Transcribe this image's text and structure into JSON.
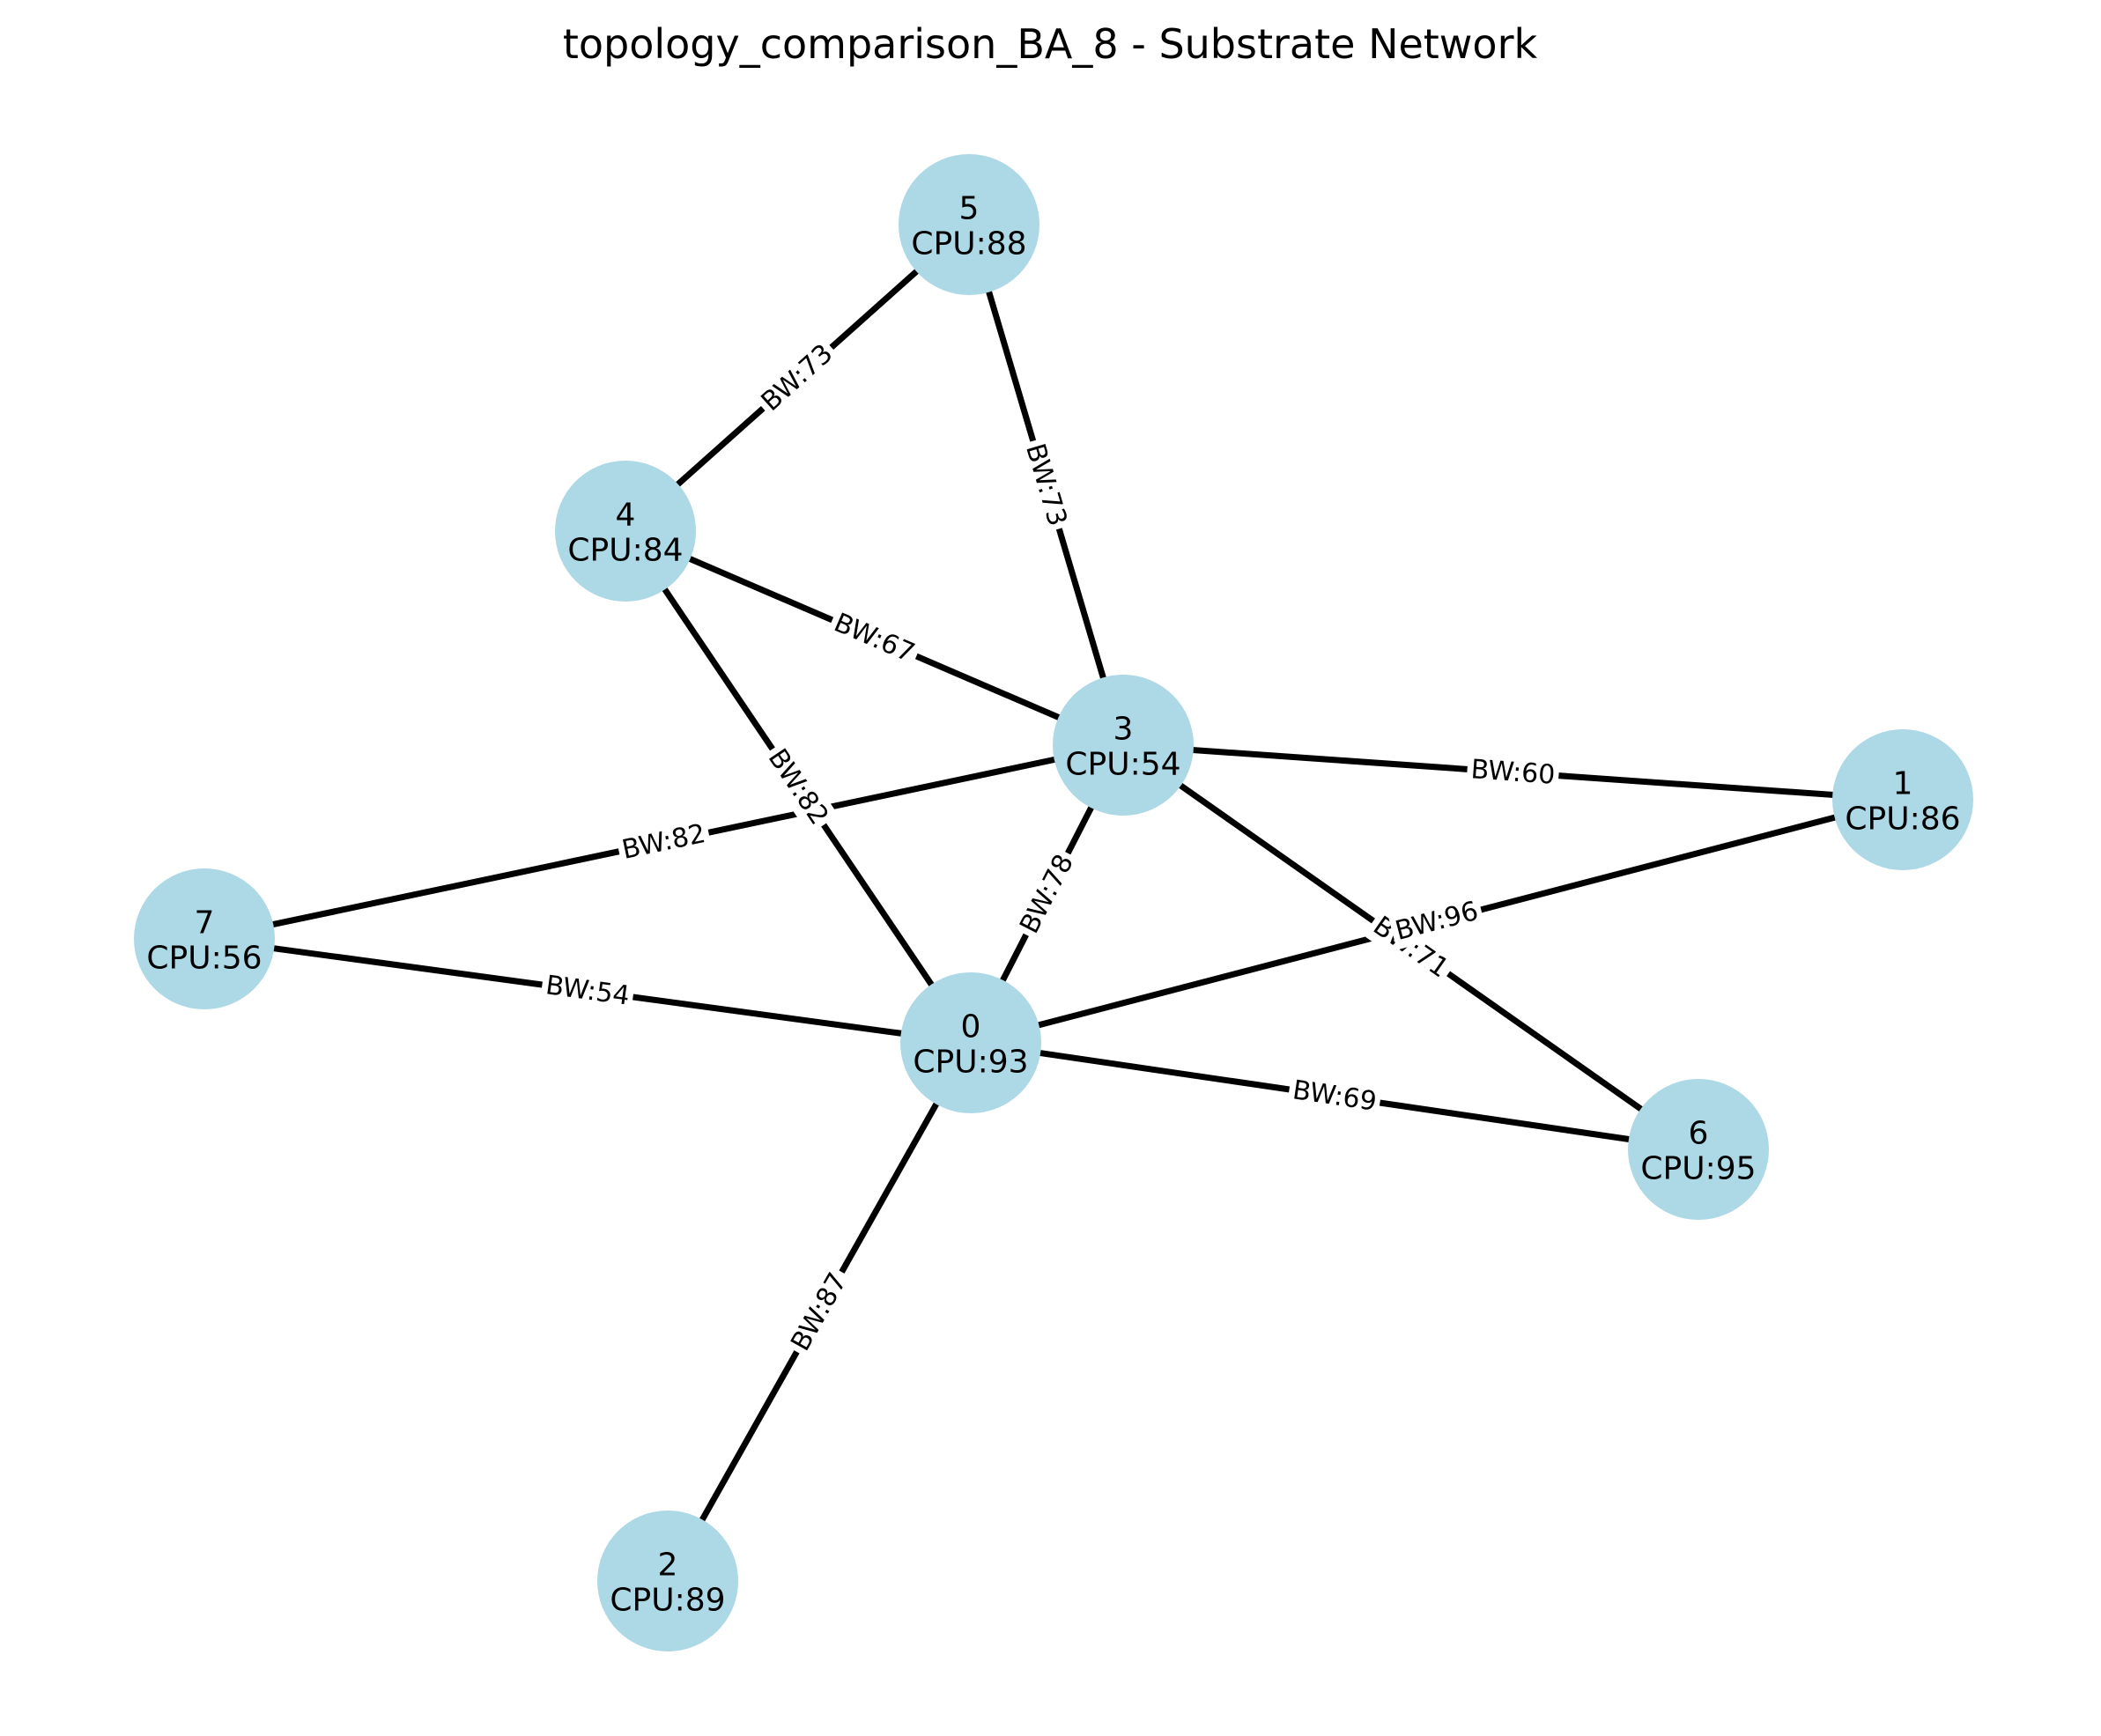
{
  "title": "topology_comparison_BA_8 - Substrate Network",
  "colors": {
    "node_fill": "#add8e6",
    "edge": "#000000",
    "background": "#ffffff"
  },
  "nodes": [
    {
      "id": "0",
      "cpu_label": "CPU:93"
    },
    {
      "id": "1",
      "cpu_label": "CPU:86"
    },
    {
      "id": "2",
      "cpu_label": "CPU:89"
    },
    {
      "id": "3",
      "cpu_label": "CPU:54"
    },
    {
      "id": "4",
      "cpu_label": "CPU:84"
    },
    {
      "id": "5",
      "cpu_label": "CPU:88"
    },
    {
      "id": "6",
      "cpu_label": "CPU:95"
    },
    {
      "id": "7",
      "cpu_label": "CPU:56"
    }
  ],
  "edges": [
    {
      "source": "5",
      "target": "4",
      "label": "BW:73"
    },
    {
      "source": "5",
      "target": "3",
      "label": "BW:73"
    },
    {
      "source": "4",
      "target": "3",
      "label": "BW:67"
    },
    {
      "source": "4",
      "target": "0",
      "label": "BW:82"
    },
    {
      "source": "3",
      "target": "7",
      "label": "BW:82"
    },
    {
      "source": "3",
      "target": "1",
      "label": "BW:60"
    },
    {
      "source": "3",
      "target": "0",
      "label": "BW:78"
    },
    {
      "source": "3",
      "target": "6",
      "label": "BW:71"
    },
    {
      "source": "0",
      "target": "1",
      "label": "BW:96"
    },
    {
      "source": "0",
      "target": "7",
      "label": "BW:54"
    },
    {
      "source": "0",
      "target": "6",
      "label": "BW:69"
    },
    {
      "source": "0",
      "target": "2",
      "label": "BW:87"
    }
  ]
}
